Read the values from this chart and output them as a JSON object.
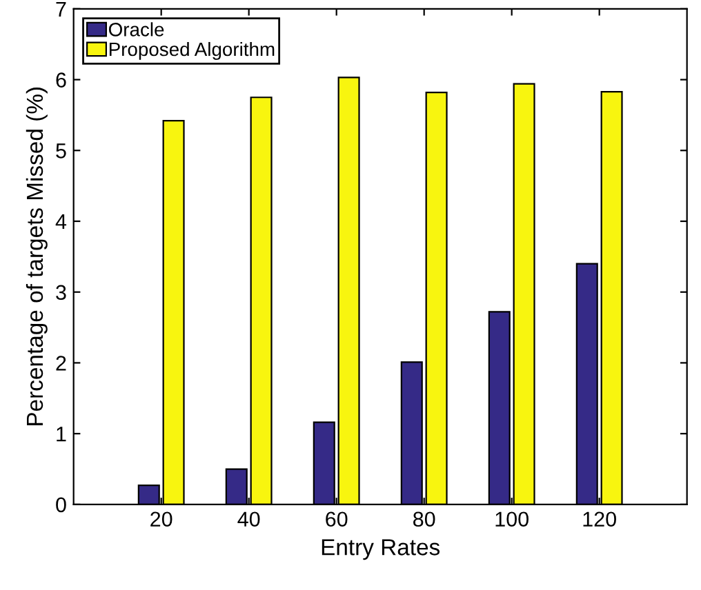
{
  "chart_data": {
    "type": "bar",
    "xlabel": "Entry Rates",
    "ylabel": "Percentage of targets Missed (%)",
    "x": [
      20,
      40,
      60,
      80,
      100,
      120
    ],
    "series": [
      {
        "name": "Oracle",
        "color": "#352a87",
        "values": [
          0.27,
          0.5,
          1.16,
          2.01,
          2.72,
          3.4
        ]
      },
      {
        "name": "Proposed Algorithm",
        "color": "#f8f50f",
        "values": [
          5.42,
          5.75,
          6.03,
          5.82,
          5.94,
          5.83
        ]
      }
    ],
    "xlim": [
      0,
      140
    ],
    "xticks": [
      20,
      40,
      60,
      80,
      100,
      120
    ],
    "ylim": [
      0,
      7
    ],
    "yticks": [
      0,
      1,
      2,
      3,
      4,
      5,
      6,
      7
    ],
    "grid": false,
    "legend": "top left"
  }
}
